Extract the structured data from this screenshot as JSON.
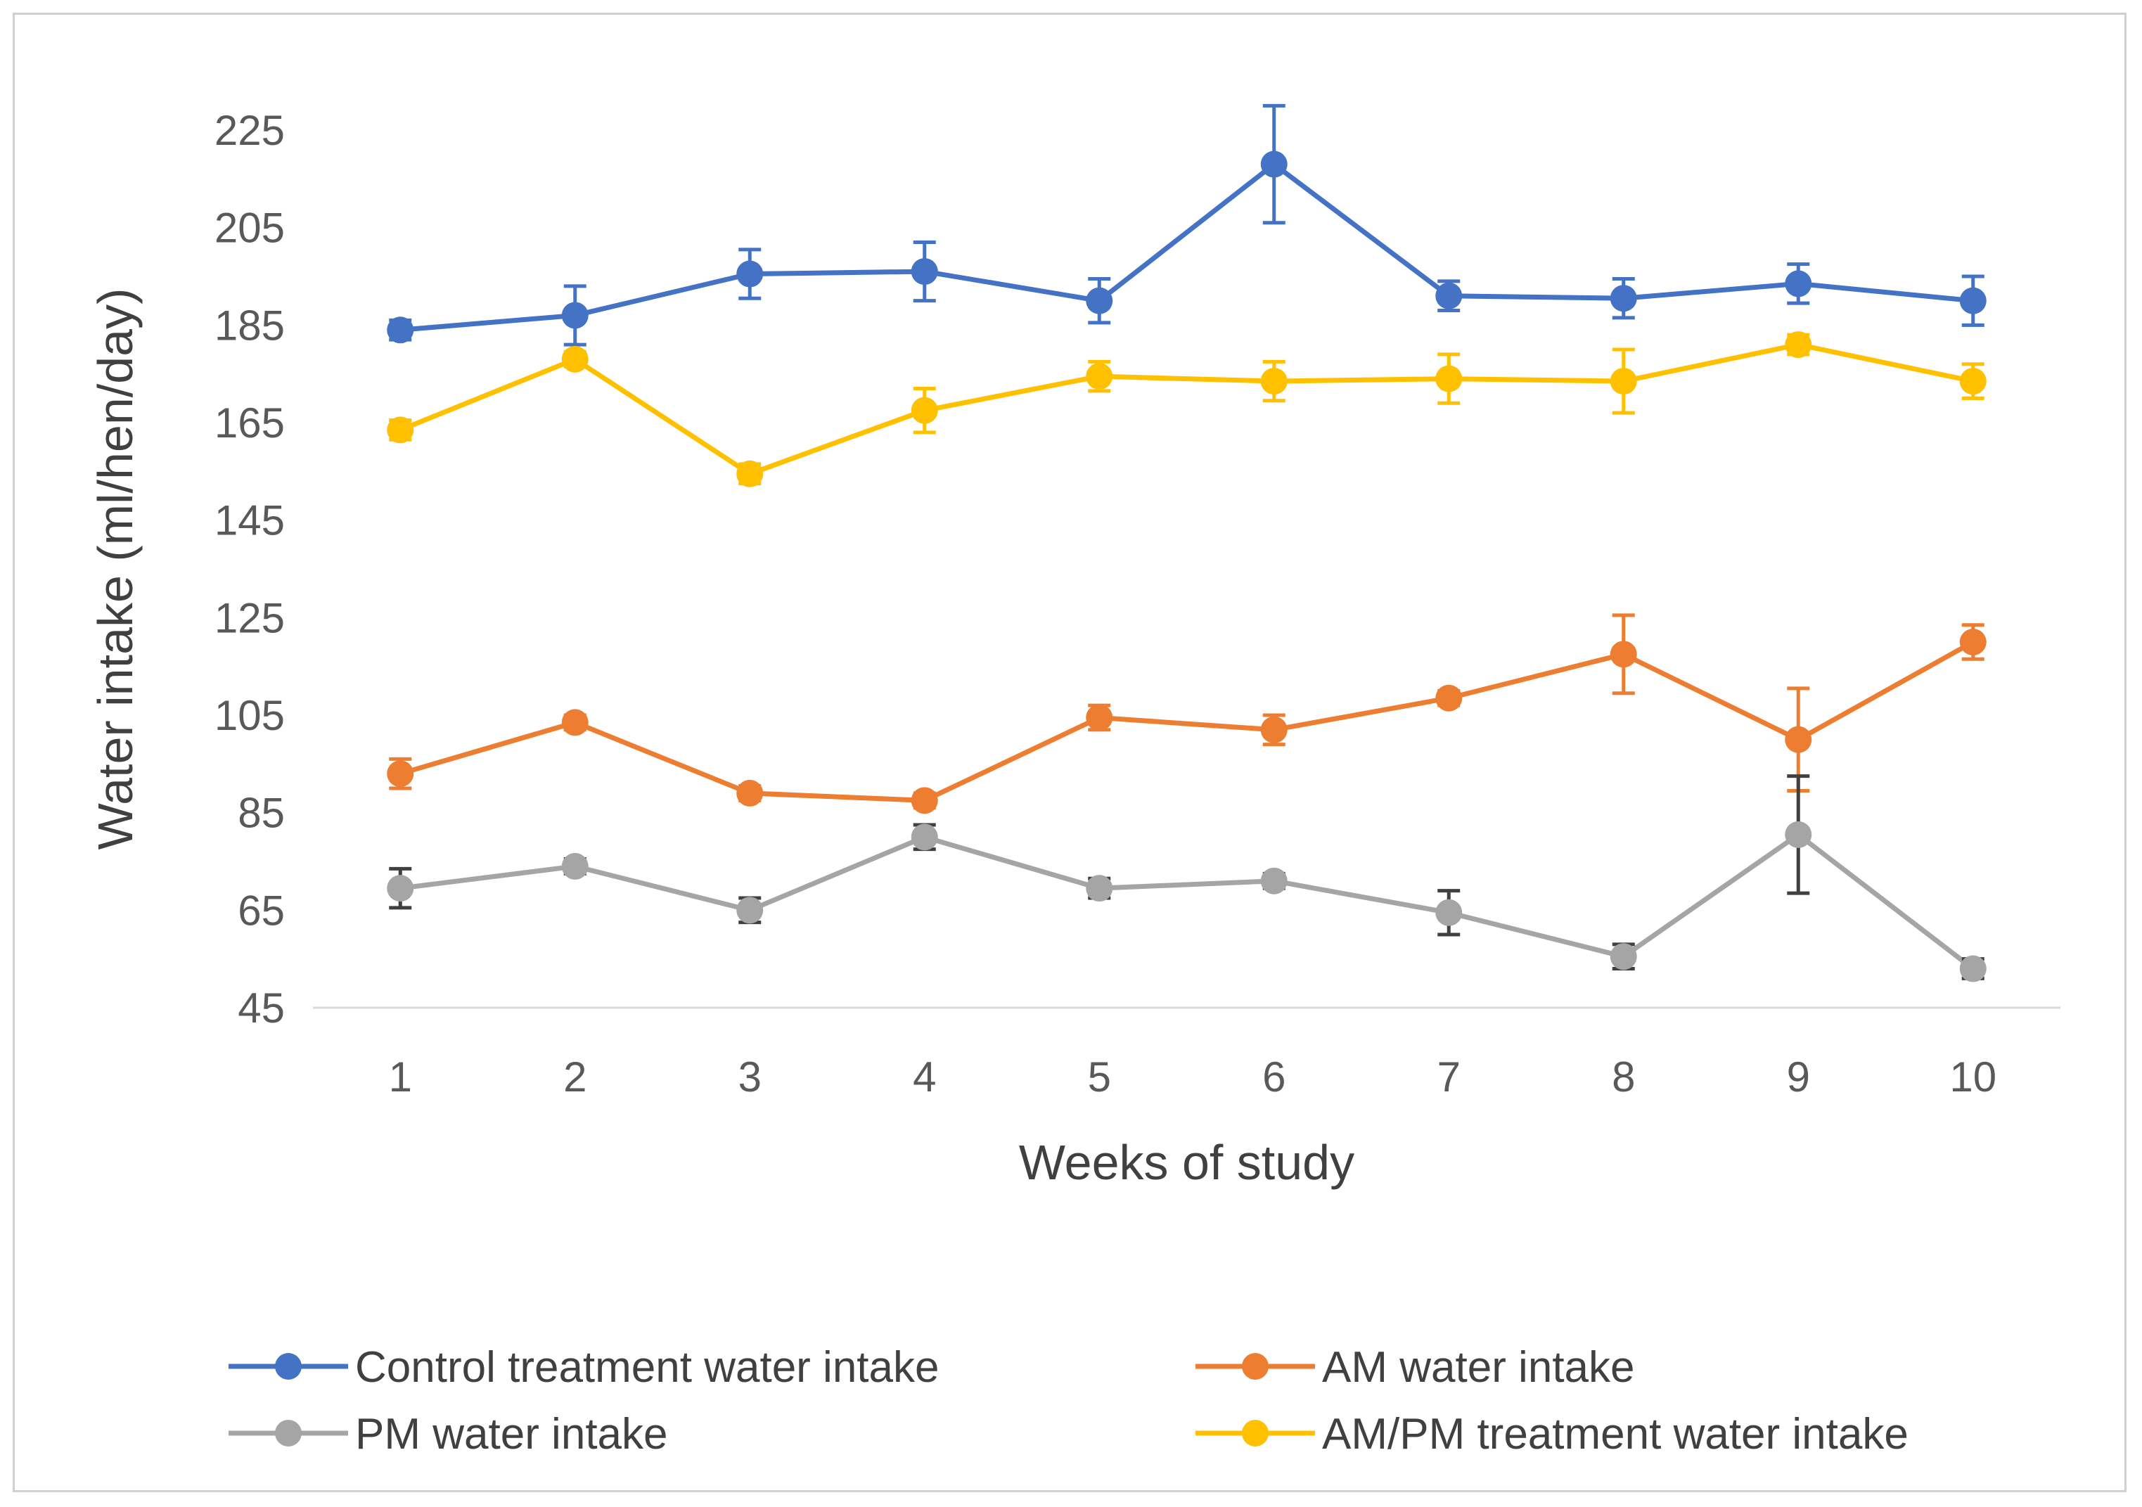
{
  "chart_data": {
    "type": "line",
    "title": "",
    "xlabel": "Weeks of study",
    "ylabel": "Water intake (ml/hen/day)",
    "categories": [
      "1",
      "2",
      "3",
      "4",
      "5",
      "6",
      "7",
      "8",
      "9",
      "10"
    ],
    "ylim": [
      45,
      225
    ],
    "yticks": [
      45,
      65,
      85,
      105,
      125,
      145,
      165,
      185,
      205,
      225
    ],
    "grid": false,
    "legend_position": "bottom",
    "series": [
      {
        "name": "Control treatment water intake",
        "color": "#4472C4",
        "values": [
          184,
          187,
          195.5,
          196,
          190,
          218,
          191,
          190.5,
          193.5,
          190
        ],
        "errors": [
          2,
          6,
          5,
          6,
          4.5,
          12,
          3,
          4,
          4,
          5
        ]
      },
      {
        "name": "AM water intake",
        "color": "#ED7D31",
        "values": [
          93,
          103.5,
          89,
          87.5,
          104.5,
          102,
          108.5,
          117.5,
          100,
          120
        ],
        "errors": [
          3,
          1.5,
          1.5,
          1.5,
          2.5,
          3,
          1.5,
          8,
          10.5,
          3.5
        ]
      },
      {
        "name": "PM water intake",
        "color": "#A5A5A5",
        "error_color": "#404040",
        "values": [
          69.5,
          74,
          65,
          80,
          69.5,
          71,
          64.5,
          55.5,
          80.5,
          53
        ],
        "errors": [
          4,
          1.5,
          2.5,
          2.5,
          2,
          1.5,
          4.5,
          2.5,
          12,
          2
        ]
      },
      {
        "name": "AM/PM treatment water intake",
        "color": "#FFC000",
        "values": [
          163.5,
          178,
          154.5,
          167.5,
          174.5,
          173.5,
          174,
          173.5,
          181,
          173.5
        ],
        "errors": [
          2,
          1.5,
          2,
          4.5,
          3,
          4,
          5,
          6.5,
          2,
          3.5
        ]
      }
    ],
    "legend_order": [
      0,
      1,
      2,
      3
    ]
  }
}
